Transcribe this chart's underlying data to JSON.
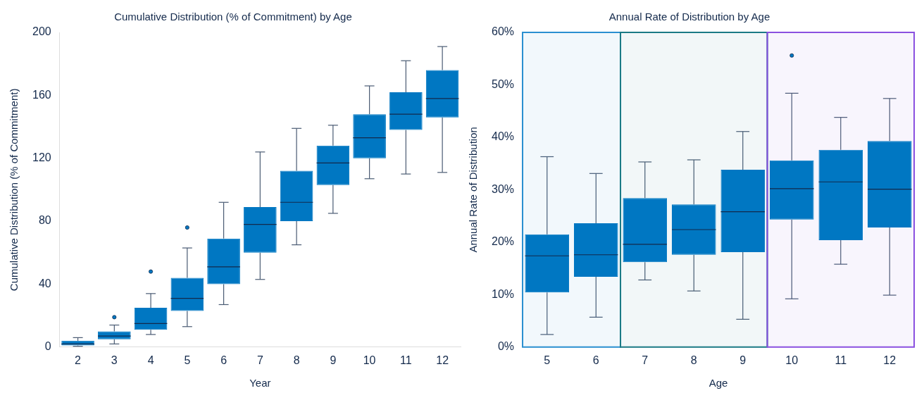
{
  "chart_data": [
    {
      "type": "box",
      "title": "Cumulative Distribution (% of Commitment) by Age",
      "xlabel": "Year",
      "ylabel": "Cumulative Distribution (% of Commitment)",
      "categories": [
        "2",
        "3",
        "4",
        "5",
        "6",
        "7",
        "8",
        "9",
        "10",
        "11",
        "12"
      ],
      "color": "#0077c2",
      "ylim": [
        0,
        200
      ],
      "yticks": [
        0,
        40,
        80,
        120,
        160,
        200
      ],
      "grid": false,
      "boxes": [
        {
          "low": 0.5,
          "q1": 1,
          "median": 2,
          "q3": 4,
          "high": 6
        },
        {
          "low": 2,
          "q1": 5,
          "median": 7,
          "q3": 10,
          "high": 14,
          "outliers": [
            19
          ]
        },
        {
          "low": 8,
          "q1": 11,
          "median": 15,
          "q3": 25,
          "high": 34,
          "outliers": [
            48
          ]
        },
        {
          "low": 13,
          "q1": 23,
          "median": 31,
          "q3": 44,
          "high": 63,
          "outliers": [
            76
          ]
        },
        {
          "low": 27,
          "q1": 40,
          "median": 51,
          "q3": 69,
          "high": 92
        },
        {
          "low": 43,
          "q1": 60,
          "median": 78,
          "q3": 89,
          "high": 124
        },
        {
          "low": 65,
          "q1": 80,
          "median": 92,
          "q3": 112,
          "high": 139
        },
        {
          "low": 85,
          "q1": 103,
          "median": 117,
          "q3": 128,
          "high": 141
        },
        {
          "low": 107,
          "q1": 120,
          "median": 133,
          "q3": 148,
          "high": 166
        },
        {
          "low": 110,
          "q1": 138,
          "median": 148,
          "q3": 162,
          "high": 182
        },
        {
          "low": 111,
          "q1": 146,
          "median": 158,
          "q3": 176,
          "high": 191
        }
      ]
    },
    {
      "type": "box",
      "title": "Annual Rate of Distribution by Age",
      "xlabel": "Age",
      "ylabel": "Annual Rate of Distribution",
      "categories": [
        "5",
        "6",
        "7",
        "8",
        "9",
        "10",
        "11",
        "12"
      ],
      "color": "#0077c2",
      "ylim": [
        0,
        60
      ],
      "yticks": [
        {
          "value": 0,
          "label": "0%"
        },
        {
          "value": 10,
          "label": "10%"
        },
        {
          "value": 20,
          "label": "20%"
        },
        {
          "value": 30,
          "label": "30%"
        },
        {
          "value": 40,
          "label": "40%"
        },
        {
          "value": 50,
          "label": "50%"
        },
        {
          "value": 60,
          "label": "60%"
        }
      ],
      "grid": false,
      "boxes": [
        {
          "low": 2.4,
          "q1": 10.4,
          "median": 17.4,
          "q3": 21.5,
          "high": 36.3
        },
        {
          "low": 5.7,
          "q1": 13.4,
          "median": 17.6,
          "q3": 23.6,
          "high": 33.1
        },
        {
          "low": 12.8,
          "q1": 16.2,
          "median": 19.6,
          "q3": 28.4,
          "high": 35.3
        },
        {
          "low": 10.7,
          "q1": 17.6,
          "median": 22.4,
          "q3": 27.2,
          "high": 35.7
        },
        {
          "low": 5.3,
          "q1": 18.1,
          "median": 25.8,
          "q3": 33.8,
          "high": 41.1
        },
        {
          "low": 9.2,
          "q1": 24.3,
          "median": 30.2,
          "q3": 35.6,
          "high": 48.4,
          "outliers": [
            55.6
          ]
        },
        {
          "low": 15.8,
          "q1": 20.4,
          "median": 31.5,
          "q3": 37.6,
          "high": 43.8
        },
        {
          "low": 9.9,
          "q1": 22.8,
          "median": 30.1,
          "q3": 39.3,
          "high": 47.4
        }
      ],
      "bands": [
        {
          "axis": "x",
          "from": "5",
          "to": "6",
          "color": "#2a8fd0"
        },
        {
          "axis": "x",
          "from": "7",
          "to": "9",
          "color": "#1b7a85"
        },
        {
          "axis": "x",
          "from": "10",
          "to": "12",
          "color": "#8a50e0"
        }
      ]
    }
  ]
}
